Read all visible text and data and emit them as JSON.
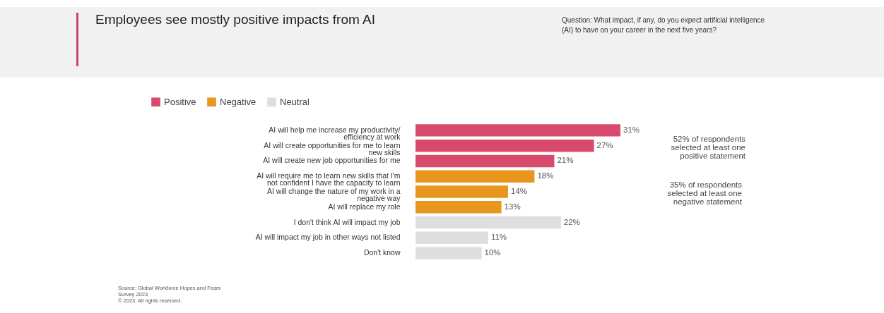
{
  "chart_data": {
    "type": "bar",
    "orientation": "horizontal",
    "title": "Employees see mostly positive impacts from AI",
    "subtitle": "Question: What impact, if any, do you expect artificial intelligence (AI) to have on your career in the next five years?",
    "categories": [
      "AI will help me increase my productivity/ efficiency at work",
      "AI will create opportunities for me to learn new skills",
      "AI will create new job opportunities for me",
      "AI will require me to learn new skills that I'm not confident I have the capacity to learn",
      "AI will change the nature of my work in a negative way",
      "AI will replace my role",
      "I don't think AI will impact my job",
      "AI will impact my job in other ways not listed",
      "Don't know"
    ],
    "series": [
      {
        "name": "Positive",
        "color": "#d84a6b",
        "values": [
          31,
          27,
          21,
          null,
          null,
          null,
          null,
          null,
          null
        ],
        "value_labels": [
          "31%",
          "27%",
          "21%",
          null,
          null,
          null,
          null,
          null,
          null
        ]
      },
      {
        "name": "Negative",
        "color": "#e8961e",
        "values": [
          null,
          null,
          null,
          18,
          14,
          13,
          null,
          null,
          null
        ],
        "value_labels": [
          null,
          null,
          null,
          "18%",
          "14%",
          "13%",
          null,
          null,
          null
        ]
      },
      {
        "name": "Neutral",
        "color": "#dedede",
        "values": [
          null,
          null,
          null,
          null,
          null,
          null,
          22,
          11,
          10
        ],
        "value_labels": [
          null,
          null,
          null,
          null,
          null,
          null,
          "22%",
          "11%",
          "10%"
        ]
      }
    ],
    "legend": "top left",
    "annotations": [
      "52% of respondents selected at least one positive statement",
      "35% of respondents selected at least one negative statement",
      "Source: Global Workforce Hopes and Fears Survey 2023",
      "© 2023. All rights reserved."
    ]
  }
}
